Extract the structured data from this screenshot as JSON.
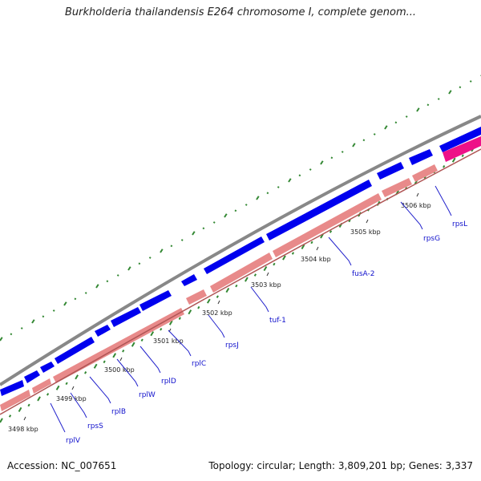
{
  "title": "Burkholderia thailandensis E264 chromosome I, complete genom...",
  "footer": {
    "accession": "Accession: NC_007651",
    "meta": "Topology: circular; Length: 3,809,201 bp; Genes: 3,337"
  },
  "colors": {
    "backbone": "#888888",
    "forward_feature": "#0000ee",
    "reverse_feature": "#e88a8a",
    "highlight_feature": "#ee1188",
    "gc_tick": "#338833",
    "label_line": "#2222cc"
  },
  "scale_ticks": [
    "3498 kbp",
    "3499 kbp",
    "3500 kbp",
    "3501 kbp",
    "3502 kbp",
    "3503 kbp",
    "3504 kbp",
    "3505 kbp",
    "3506 kbp"
  ],
  "genes": [
    "rplV",
    "rpsS",
    "rplB",
    "rplW",
    "rplD",
    "rplC",
    "rpsJ",
    "tuf-1",
    "fusA-2",
    "rpsG",
    "rpsL"
  ]
}
